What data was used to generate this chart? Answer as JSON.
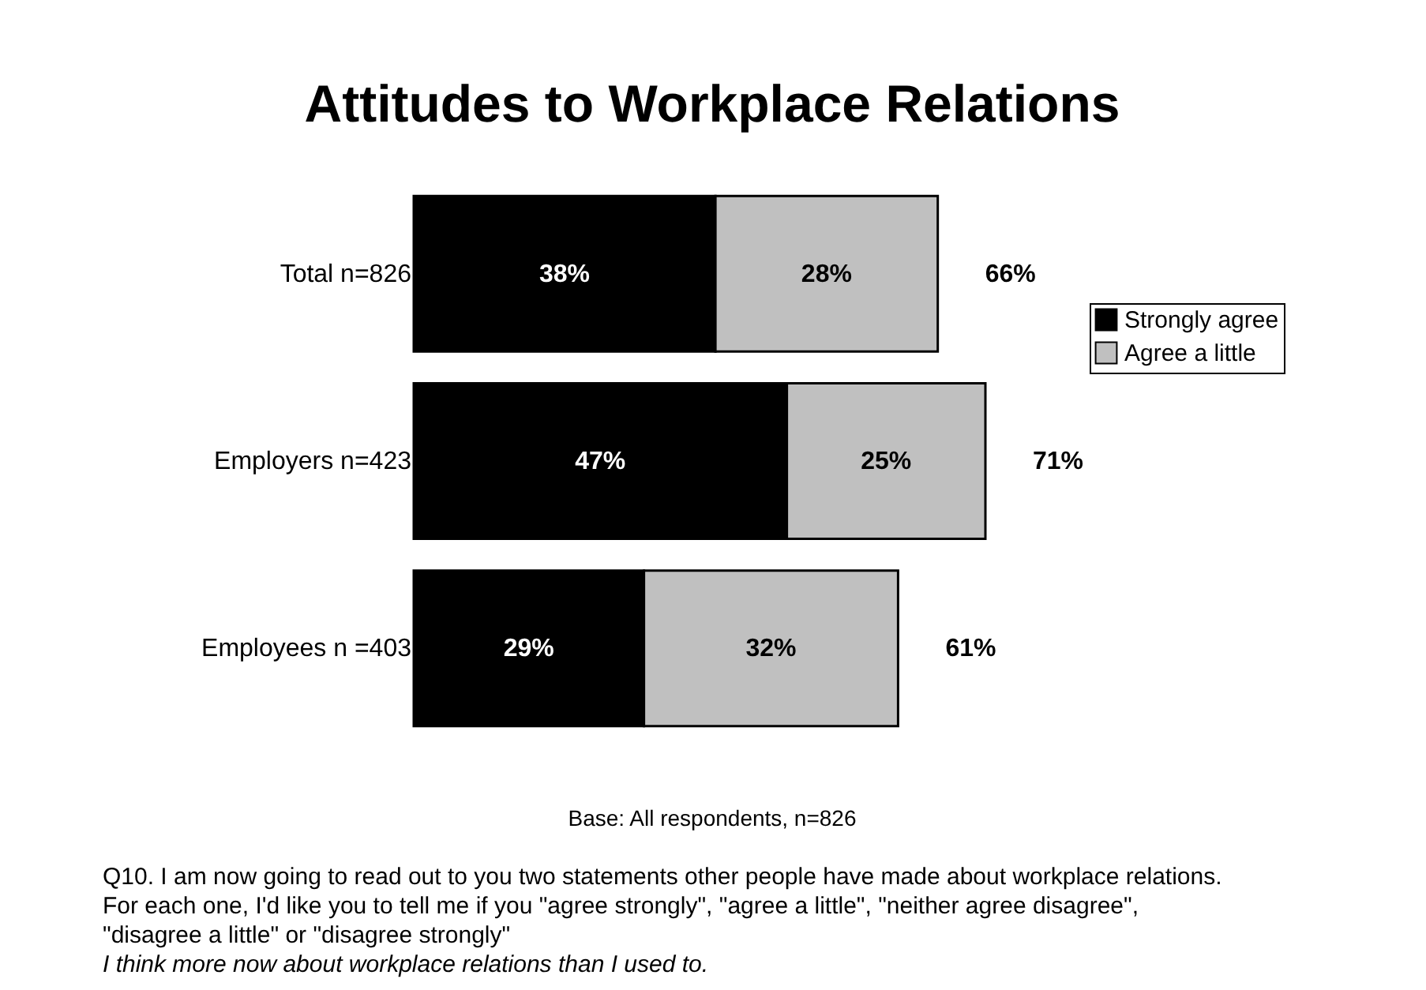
{
  "chart_data": {
    "type": "bar",
    "orientation": "horizontal",
    "stacked": true,
    "title": "Attitudes to Workplace Relations",
    "categories": [
      "Total n=826",
      "Employers n=423",
      "Employees n =403"
    ],
    "series": [
      {
        "name": "Strongly agree",
        "color": "#000000",
        "values": [
          38,
          47,
          29
        ],
        "value_labels": [
          "38%",
          "47%",
          "29%"
        ]
      },
      {
        "name": "Agree a little",
        "color": "#c0c0c0",
        "values": [
          28,
          25,
          32
        ],
        "value_labels": [
          "28%",
          "25%",
          "32%"
        ]
      }
    ],
    "totals": [
      "66%",
      "71%",
      "61%"
    ],
    "legend": "right",
    "tick_labels": "y",
    "annotations": [
      "Base:  All respondents, n=826",
      "Q10.  I am now going to read out to you two statements other people have made about workplace relations.  For each one, I'd like you to tell me if you \"agree strongly\", \"agree a little\", \"neither agree disagree\", \"disagree a little\" or \"disagree strongly\"",
      "I think more now about workplace relations than I used to."
    ]
  }
}
